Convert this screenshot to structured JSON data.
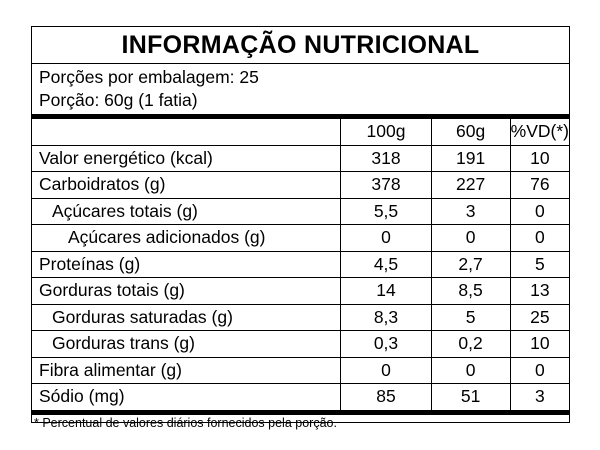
{
  "title": "INFORMAÇÃO NUTRICIONAL",
  "servings_per_package": "Porções por embalagem: 25",
  "serving_size": "Porção: 60g (1 fatia)",
  "columns": [
    "100g",
    "60g",
    "%VD(*)"
  ],
  "rows": [
    {
      "name": "Valor energético (kcal)",
      "v100": "318",
      "v60": "191",
      "vd": "10"
    },
    {
      "name": "Carboidratos (g)",
      "v100": "378",
      "v60": "227",
      "vd": "76"
    },
    {
      "name": "Açúcares totais (g)",
      "v100": "5,5",
      "v60": "3",
      "vd": "0"
    },
    {
      "name": "Açúcares adicionados (g)",
      "v100": "0",
      "v60": "0",
      "vd": "0"
    },
    {
      "name": "Proteínas (g)",
      "v100": "4,5",
      "v60": "2,7",
      "vd": "5"
    },
    {
      "name": "Gorduras totais (g)",
      "v100": "14",
      "v60": "8,5",
      "vd": "13"
    },
    {
      "name": "Gorduras saturadas (g)",
      "v100": "8,3",
      "v60": "5",
      "vd": "25"
    },
    {
      "name": "Gorduras trans (g)",
      "v100": "0,3",
      "v60": "0,2",
      "vd": "10"
    },
    {
      "name": "Fibra alimentar (g)",
      "v100": "0",
      "v60": "0",
      "vd": "0"
    },
    {
      "name": "Sódio (mg)",
      "v100": "85",
      "v60": "51",
      "vd": "3"
    }
  ],
  "footnote": "* Percentual de valores diários fornecidos pela porção."
}
